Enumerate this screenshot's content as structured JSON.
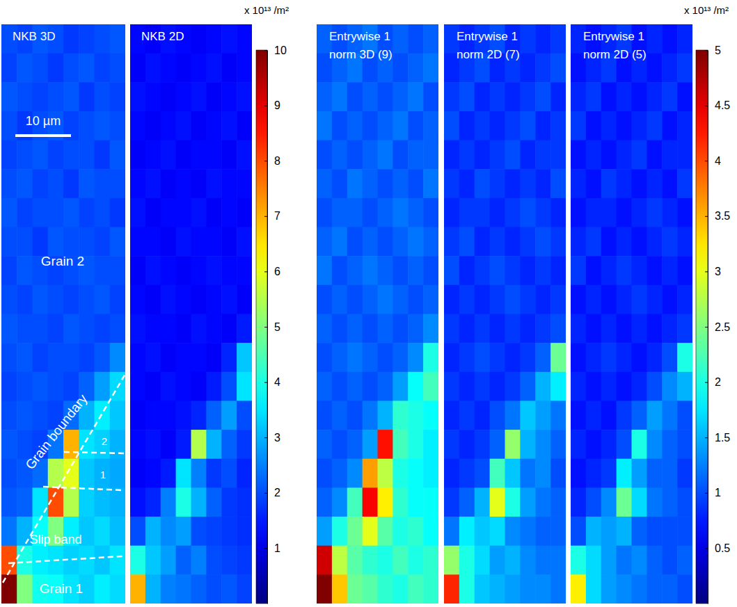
{
  "chart_data": [
    {
      "type": "heatmap",
      "color_label": "x 10¹³ /m²",
      "color_range": [
        0,
        10
      ],
      "color_ticks": [
        1,
        2,
        3,
        4,
        5,
        6,
        7,
        8,
        9,
        10
      ],
      "annotations": [
        "10 µm",
        "Grain 2",
        "Grain boundary",
        "2",
        "1",
        "Slip band",
        "Grain 1"
      ],
      "panels": [
        {
          "title": [
            "NKB 3D"
          ],
          "cells": [
            [
              2.0,
              1.9,
              2.1,
              2.0,
              1.8,
              1.9,
              2.0,
              2.1
            ],
            [
              1.9,
              2.1,
              2.0,
              1.8,
              2.0,
              2.1,
              1.9,
              2.0
            ],
            [
              2.1,
              2.0,
              1.9,
              2.0,
              2.1,
              1.8,
              2.0,
              1.9
            ],
            [
              2.0,
              1.8,
              2.0,
              2.1,
              1.9,
              2.0,
              2.1,
              2.0
            ],
            [
              1.9,
              2.0,
              2.1,
              1.9,
              2.0,
              2.0,
              1.8,
              2.1
            ],
            [
              2.0,
              2.1,
              1.9,
              2.0,
              1.8,
              2.1,
              2.0,
              2.0
            ],
            [
              2.1,
              1.9,
              2.0,
              2.0,
              2.1,
              1.9,
              2.0,
              1.8
            ],
            [
              2.0,
              2.0,
              1.8,
              2.1,
              2.0,
              2.0,
              1.9,
              2.1
            ],
            [
              1.9,
              2.1,
              2.0,
              1.9,
              2.0,
              2.1,
              2.0,
              2.0
            ],
            [
              2.0,
              1.9,
              2.1,
              2.0,
              1.9,
              2.0,
              2.1,
              1.9
            ],
            [
              2.1,
              2.0,
              2.0,
              1.9,
              2.1,
              2.0,
              1.9,
              2.0
            ],
            [
              2.0,
              2.1,
              1.9,
              2.0,
              2.0,
              1.9,
              2.1,
              2.6
            ],
            [
              1.9,
              2.0,
              2.1,
              2.0,
              1.9,
              2.2,
              2.8,
              3.4
            ],
            [
              2.0,
              2.1,
              2.0,
              1.9,
              2.3,
              3.0,
              3.6,
              3.2
            ],
            [
              2.1,
              2.0,
              1.9,
              2.4,
              7.0,
              3.5,
              3.3,
              3.0
            ],
            [
              2.0,
              2.1,
              2.3,
              5.5,
              6.0,
              3.2,
              3.0,
              2.9
            ],
            [
              2.1,
              2.2,
              3.5,
              8.0,
              5.5,
              3.3,
              3.1,
              3.0
            ],
            [
              2.4,
              3.0,
              3.8,
              5.0,
              3.6,
              3.2,
              3.4,
              3.1
            ],
            [
              8.0,
              4.0,
              3.6,
              3.5,
              3.3,
              3.4,
              3.2,
              3.5
            ],
            [
              10.0,
              5.0,
              3.9,
              3.8,
              3.5,
              3.3,
              3.6,
              3.4
            ]
          ]
        },
        {
          "title": [
            "NKB 2D"
          ],
          "cells": [
            [
              1.3,
              1.2,
              1.4,
              1.3,
              1.2,
              1.3,
              1.4,
              1.3
            ],
            [
              1.2,
              1.4,
              1.3,
              1.2,
              1.3,
              1.4,
              1.2,
              1.3
            ],
            [
              1.4,
              1.3,
              1.2,
              1.3,
              1.4,
              1.2,
              1.3,
              1.4
            ],
            [
              1.3,
              1.2,
              1.3,
              1.4,
              1.2,
              1.3,
              1.4,
              1.2
            ],
            [
              1.2,
              1.3,
              1.4,
              1.2,
              1.3,
              1.3,
              1.2,
              1.4
            ],
            [
              1.3,
              1.4,
              1.2,
              1.3,
              1.2,
              1.4,
              1.3,
              1.3
            ],
            [
              1.4,
              1.2,
              1.3,
              1.3,
              1.4,
              1.2,
              1.3,
              1.2
            ],
            [
              1.3,
              1.3,
              1.2,
              1.4,
              1.3,
              1.3,
              1.2,
              1.4
            ],
            [
              1.2,
              1.4,
              1.3,
              1.2,
              1.3,
              1.4,
              1.3,
              1.3
            ],
            [
              1.3,
              1.2,
              1.4,
              1.3,
              1.2,
              1.3,
              1.4,
              1.2
            ],
            [
              1.4,
              1.3,
              1.3,
              1.2,
              1.4,
              1.3,
              1.2,
              1.5
            ],
            [
              1.3,
              1.4,
              1.2,
              1.3,
              1.3,
              1.2,
              1.6,
              3.2
            ],
            [
              1.3,
              1.2,
              1.4,
              1.3,
              1.2,
              1.5,
              2.0,
              3.5
            ],
            [
              1.2,
              1.3,
              1.3,
              1.4,
              1.6,
              2.2,
              2.8,
              2.0
            ],
            [
              1.3,
              1.4,
              1.2,
              1.5,
              5.5,
              3.0,
              2.2,
              1.8
            ],
            [
              1.2,
              1.3,
              1.5,
              3.5,
              2.5,
              1.8,
              2.0,
              1.6
            ],
            [
              1.4,
              1.6,
              2.5,
              4.0,
              3.0,
              2.2,
              1.8,
              1.7
            ],
            [
              2.0,
              3.0,
              2.6,
              2.8,
              2.0,
              1.9,
              1.8,
              1.7
            ],
            [
              4.0,
              3.2,
              2.8,
              2.2,
              2.5,
              2.0,
              1.9,
              1.8
            ],
            [
              7.0,
              3.0,
              2.5,
              2.4,
              2.2,
              2.0,
              2.1,
              1.9
            ]
          ]
        }
      ]
    },
    {
      "type": "heatmap",
      "color_label": "x 10¹³ /m²",
      "color_range": [
        0,
        5
      ],
      "color_ticks": [
        0.5,
        1,
        1.5,
        2,
        2.5,
        3,
        3.5,
        4,
        4.5,
        5
      ],
      "panels": [
        {
          "title": [
            "Entrywise 1",
            "norm 3D (9)"
          ],
          "cells": [
            [
              1.1,
              1.0,
              1.1,
              1.2,
              1.0,
              1.1,
              1.0,
              1.1
            ],
            [
              1.0,
              1.1,
              1.2,
              1.0,
              1.1,
              1.0,
              1.1,
              1.2
            ],
            [
              1.1,
              1.2,
              1.0,
              1.1,
              1.0,
              1.1,
              1.2,
              1.0
            ],
            [
              1.2,
              1.0,
              1.1,
              1.0,
              1.1,
              1.2,
              1.0,
              1.1
            ],
            [
              1.0,
              1.1,
              1.0,
              1.1,
              1.2,
              1.0,
              1.1,
              1.1
            ],
            [
              1.1,
              1.0,
              1.2,
              1.1,
              1.0,
              1.1,
              1.0,
              1.2
            ],
            [
              1.0,
              1.1,
              1.1,
              1.0,
              1.1,
              1.2,
              1.1,
              1.0
            ],
            [
              1.1,
              1.2,
              1.0,
              1.1,
              1.0,
              1.1,
              1.2,
              1.1
            ],
            [
              1.2,
              1.0,
              1.1,
              1.2,
              1.1,
              1.0,
              1.1,
              1.0
            ],
            [
              1.0,
              1.1,
              1.0,
              1.1,
              1.2,
              1.1,
              1.0,
              1.1
            ],
            [
              1.1,
              1.0,
              1.1,
              1.0,
              1.1,
              1.0,
              1.1,
              1.3
            ],
            [
              1.0,
              1.1,
              1.2,
              1.1,
              1.0,
              1.1,
              1.3,
              2.0
            ],
            [
              1.1,
              1.0,
              1.1,
              1.0,
              1.1,
              1.4,
              1.9,
              2.2
            ],
            [
              1.0,
              1.1,
              1.0,
              1.2,
              1.5,
              2.1,
              2.0,
              1.9
            ],
            [
              1.1,
              1.0,
              1.1,
              1.4,
              4.3,
              2.2,
              2.0,
              1.8
            ],
            [
              1.0,
              1.1,
              1.3,
              3.6,
              2.8,
              2.0,
              1.9,
              1.8
            ],
            [
              1.1,
              1.3,
              2.2,
              4.4,
              3.2,
              2.1,
              1.9,
              1.9
            ],
            [
              1.4,
              2.0,
              2.4,
              3.0,
              2.3,
              2.0,
              2.1,
              1.9
            ],
            [
              4.6,
              2.8,
              2.3,
              2.1,
              2.0,
              2.2,
              2.0,
              2.1
            ],
            [
              5.0,
              3.4,
              2.4,
              2.3,
              2.1,
              2.0,
              2.2,
              2.1
            ]
          ]
        },
        {
          "title": [
            "Entrywise 1",
            "norm 2D (7)"
          ],
          "cells": [
            [
              0.9,
              0.8,
              0.9,
              1.0,
              0.8,
              0.9,
              0.8,
              0.9
            ],
            [
              0.8,
              0.9,
              1.0,
              0.8,
              0.9,
              0.8,
              0.9,
              1.0
            ],
            [
              0.9,
              1.0,
              0.8,
              0.9,
              0.8,
              0.9,
              1.0,
              0.8
            ],
            [
              1.0,
              0.8,
              0.9,
              0.8,
              0.9,
              1.0,
              0.8,
              0.9
            ],
            [
              0.8,
              0.9,
              0.8,
              0.9,
              1.0,
              0.8,
              0.9,
              0.9
            ],
            [
              0.9,
              0.8,
              1.0,
              0.9,
              0.8,
              0.9,
              0.8,
              1.0
            ],
            [
              0.8,
              0.9,
              0.9,
              0.8,
              0.9,
              1.0,
              0.9,
              0.8
            ],
            [
              0.9,
              1.0,
              0.8,
              0.9,
              0.8,
              0.9,
              1.0,
              0.9
            ],
            [
              1.0,
              0.8,
              0.9,
              1.0,
              0.9,
              0.8,
              0.9,
              0.8
            ],
            [
              0.8,
              0.9,
              0.8,
              0.9,
              1.0,
              0.9,
              0.8,
              0.9
            ],
            [
              0.9,
              0.8,
              0.9,
              0.8,
              0.9,
              0.8,
              0.9,
              1.0
            ],
            [
              0.8,
              0.9,
              1.0,
              0.9,
              0.8,
              0.9,
              1.1,
              2.4
            ],
            [
              0.9,
              0.8,
              0.9,
              0.8,
              0.9,
              1.1,
              1.5,
              1.8
            ],
            [
              0.8,
              0.9,
              0.8,
              1.0,
              1.2,
              1.6,
              1.4,
              1.2
            ],
            [
              0.9,
              0.8,
              0.9,
              1.1,
              2.6,
              1.5,
              1.3,
              1.1
            ],
            [
              0.8,
              0.9,
              1.0,
              2.2,
              1.6,
              1.2,
              1.3,
              1.0
            ],
            [
              0.9,
              1.1,
              1.5,
              3.0,
              2.0,
              1.4,
              1.2,
              1.1
            ],
            [
              1.2,
              1.8,
              1.6,
              1.7,
              1.3,
              1.2,
              1.1,
              1.1
            ],
            [
              2.6,
              2.0,
              1.7,
              1.4,
              1.5,
              1.3,
              1.2,
              1.2
            ],
            [
              4.2,
              2.0,
              1.6,
              1.5,
              1.4,
              1.3,
              1.3,
              1.2
            ]
          ]
        },
        {
          "title": [
            "Entrywise 1",
            "norm 2D (5)"
          ],
          "cells": [
            [
              0.8,
              0.7,
              0.8,
              0.9,
              0.7,
              0.8,
              0.7,
              0.8
            ],
            [
              0.7,
              0.8,
              0.9,
              0.7,
              0.8,
              0.7,
              0.8,
              0.9
            ],
            [
              0.8,
              0.9,
              0.7,
              0.8,
              0.7,
              0.8,
              0.9,
              0.7
            ],
            [
              0.9,
              0.7,
              0.8,
              0.7,
              0.8,
              0.9,
              0.7,
              0.8
            ],
            [
              0.7,
              0.8,
              0.7,
              0.8,
              0.9,
              0.7,
              0.8,
              0.8
            ],
            [
              0.8,
              0.7,
              0.9,
              0.8,
              0.7,
              0.8,
              0.7,
              0.9
            ],
            [
              0.7,
              0.8,
              0.8,
              0.7,
              0.8,
              0.9,
              0.8,
              0.7
            ],
            [
              0.8,
              0.9,
              0.7,
              0.8,
              0.7,
              0.8,
              0.9,
              0.8
            ],
            [
              0.9,
              0.7,
              0.8,
              0.9,
              0.8,
              0.7,
              0.8,
              0.7
            ],
            [
              0.7,
              0.8,
              0.7,
              0.8,
              0.9,
              0.8,
              0.7,
              0.8
            ],
            [
              0.8,
              0.7,
              0.8,
              0.7,
              0.8,
              0.7,
              0.8,
              0.9
            ],
            [
              0.7,
              0.8,
              0.9,
              0.8,
              0.7,
              0.8,
              1.0,
              2.0
            ],
            [
              0.8,
              0.7,
              0.8,
              0.7,
              0.8,
              1.0,
              1.3,
              1.5
            ],
            [
              0.7,
              0.8,
              0.7,
              0.9,
              1.1,
              1.4,
              1.2,
              1.0
            ],
            [
              0.8,
              0.7,
              0.8,
              1.0,
              2.0,
              1.3,
              1.1,
              1.0
            ],
            [
              0.7,
              0.8,
              0.9,
              1.8,
              1.4,
              1.1,
              1.1,
              0.9
            ],
            [
              0.8,
              1.0,
              1.3,
              2.4,
              1.7,
              1.2,
              1.1,
              1.0
            ],
            [
              1.0,
              1.5,
              1.4,
              1.5,
              1.1,
              1.0,
              1.0,
              1.0
            ],
            [
              2.0,
              1.7,
              1.4,
              1.2,
              1.3,
              1.1,
              1.0,
              1.1
            ],
            [
              3.2,
              1.7,
              1.4,
              1.3,
              1.2,
              1.1,
              1.1,
              1.0
            ]
          ]
        }
      ]
    }
  ]
}
